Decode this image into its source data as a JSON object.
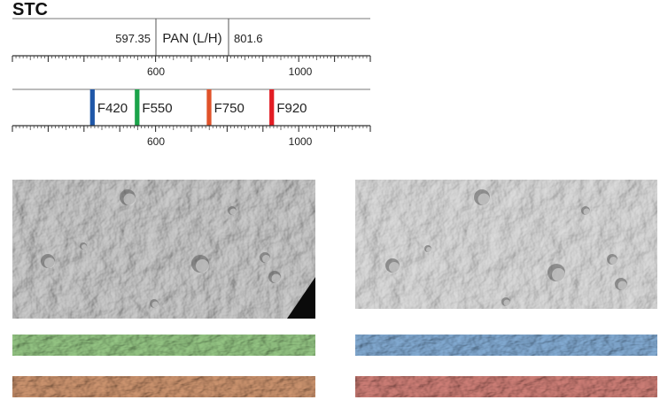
{
  "title": "STC",
  "pan": {
    "low": "597.35",
    "label": "PAN (L/H)",
    "high": "801.6"
  },
  "scale": {
    "min": 200,
    "max": 1200,
    "labels": [
      "600",
      "1000"
    ]
  },
  "filters": [
    {
      "label": "F420",
      "color": "#1f57a8",
      "start": 417,
      "end": 430
    },
    {
      "label": "F550",
      "color": "#1aa34a",
      "start": 542,
      "end": 555
    },
    {
      "label": "F750",
      "color": "#e0522a",
      "start": 743,
      "end": 756
    },
    {
      "label": "F920",
      "color": "#e21c23",
      "start": 918,
      "end": 931
    }
  ],
  "images": {
    "pan_low": "panchromatic-low-gain",
    "pan_high": "panchromatic-high-gain",
    "green": "F550",
    "blue": "F420",
    "orange": "F750",
    "red": "F920"
  }
}
